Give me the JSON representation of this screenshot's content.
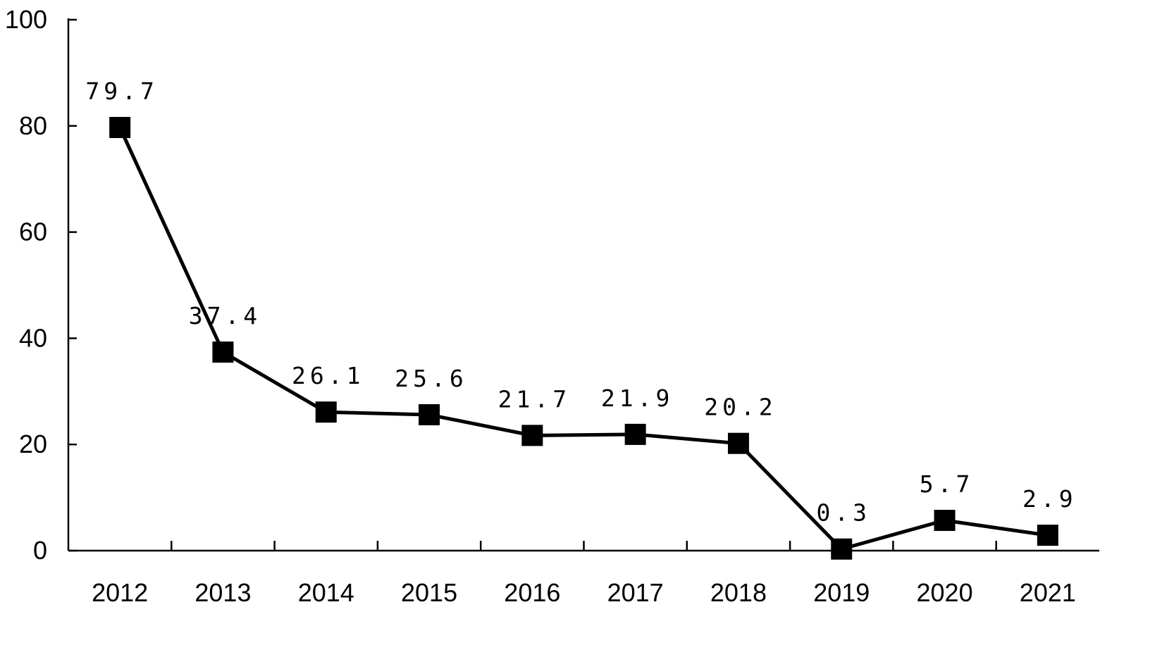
{
  "chart_data": {
    "type": "line",
    "categories": [
      "2012",
      "2013",
      "2014",
      "2015",
      "2016",
      "2017",
      "2018",
      "2019",
      "2020",
      "2021"
    ],
    "values": [
      79.7,
      37.4,
      26.1,
      25.6,
      21.7,
      21.9,
      20.2,
      0.3,
      5.7,
      2.9
    ],
    "data_labels": [
      "79.7",
      "37.4",
      "26.1",
      "25.6",
      "21.7",
      "21.9",
      "20.2",
      "0.3",
      "5.7",
      "2.9"
    ],
    "ylim": [
      0,
      100
    ],
    "yticks": [
      "0",
      "20",
      "40",
      "60",
      "80",
      "100"
    ],
    "title": "",
    "xlabel": "",
    "ylabel": "",
    "grid": false,
    "legend": "none",
    "marker": "square",
    "line_color": "#000000",
    "marker_color": "#000000"
  }
}
